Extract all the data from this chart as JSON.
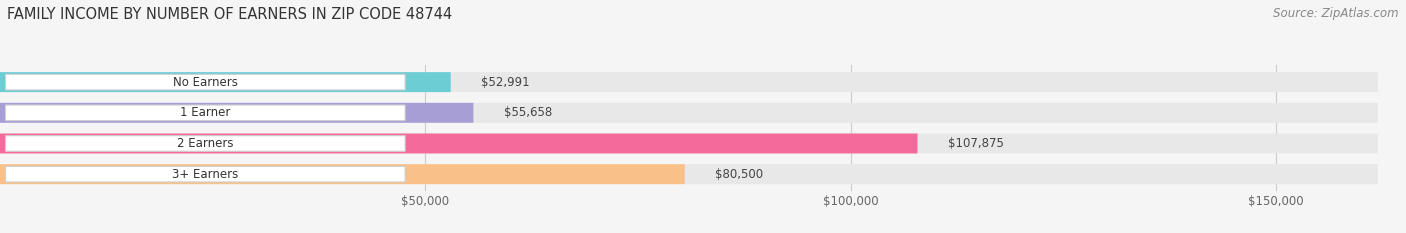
{
  "title": "FAMILY INCOME BY NUMBER OF EARNERS IN ZIP CODE 48744",
  "source": "Source: ZipAtlas.com",
  "categories": [
    "No Earners",
    "1 Earner",
    "2 Earners",
    "3+ Earners"
  ],
  "values": [
    52991,
    55658,
    107875,
    80500
  ],
  "bar_colors": [
    "#6dcdd4",
    "#a89ed6",
    "#f46b9b",
    "#f9c08a"
  ],
  "value_labels": [
    "$52,991",
    "$55,658",
    "$107,875",
    "$80,500"
  ],
  "xlim_max": 162000,
  "x_ticks": [
    50000,
    100000,
    150000
  ],
  "x_tick_labels": [
    "$50,000",
    "$100,000",
    "$150,000"
  ],
  "background_color": "#f5f5f5",
  "bar_background": "#e8e8e8",
  "title_fontsize": 10.5,
  "source_fontsize": 8.5,
  "label_fontsize": 8.5,
  "value_fontsize": 8.5,
  "tick_fontsize": 8.5
}
